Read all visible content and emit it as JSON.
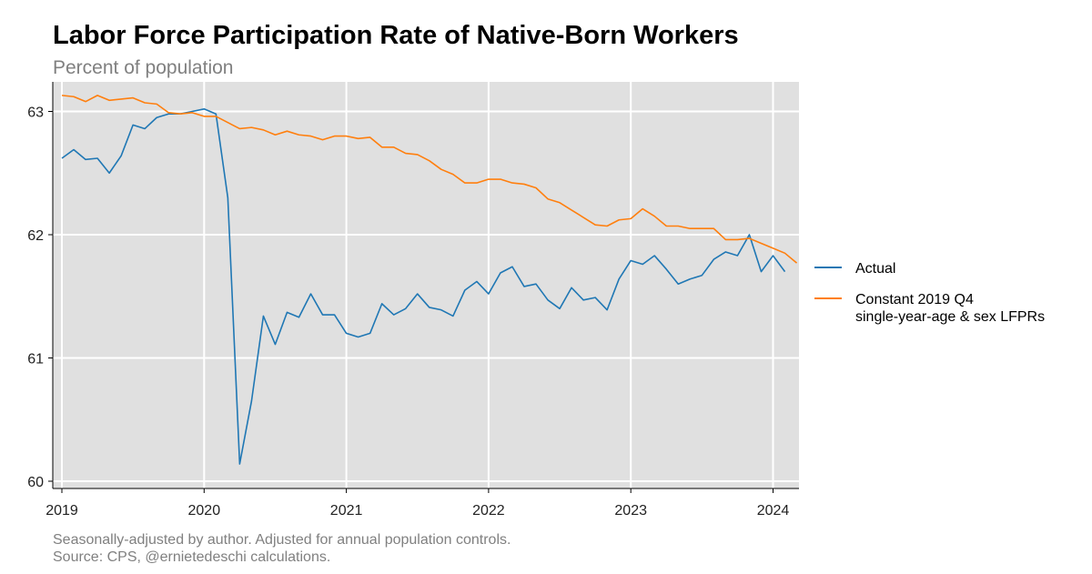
{
  "chart_data": {
    "type": "line",
    "title": "Labor Force Participation Rate of Native-Born Workers",
    "subtitle": "Percent of population",
    "xlabel": "",
    "ylabel": "",
    "xlim": [
      2019,
      2024.083
    ],
    "ylim": [
      60,
      63.22
    ],
    "x_ticks": [
      2019,
      2020,
      2021,
      2022,
      2023,
      2024
    ],
    "x_tick_labels": [
      "2019",
      "2020",
      "2021",
      "2022",
      "2023",
      "2024"
    ],
    "y_ticks": [
      60,
      61,
      62,
      63
    ],
    "y_tick_labels": [
      "60",
      "61",
      "62",
      "63"
    ],
    "grid": true,
    "legend_position": "right",
    "x_start": 2019,
    "x_step_months": 1,
    "series": [
      {
        "name": "Actual",
        "color": "#1f77b4",
        "values": [
          62.62,
          62.69,
          62.61,
          62.62,
          62.5,
          62.64,
          62.89,
          62.86,
          62.95,
          62.98,
          62.98,
          63.0,
          63.02,
          62.98,
          62.3,
          60.14,
          60.65,
          61.34,
          61.11,
          61.37,
          61.33,
          61.52,
          61.35,
          61.35,
          61.2,
          61.17,
          61.2,
          61.44,
          61.35,
          61.4,
          61.52,
          61.41,
          61.39,
          61.34,
          61.55,
          61.62,
          61.52,
          61.69,
          61.74,
          61.58,
          61.6,
          61.47,
          61.4,
          61.57,
          61.47,
          61.49,
          61.39,
          61.64,
          61.79,
          61.76,
          61.83,
          61.72,
          61.6,
          61.64,
          61.67,
          61.8,
          61.86,
          61.83,
          62.0,
          61.7,
          61.83,
          61.7
        ]
      },
      {
        "name": "Constant 2019 Q4\nsingle-year-age & sex LFPRs",
        "color": "#ff7f0e",
        "values": [
          63.13,
          63.12,
          63.08,
          63.13,
          63.09,
          63.1,
          63.11,
          63.07,
          63.06,
          62.99,
          62.98,
          62.99,
          62.96,
          62.96,
          62.91,
          62.86,
          62.87,
          62.85,
          62.81,
          62.84,
          62.81,
          62.8,
          62.77,
          62.8,
          62.8,
          62.78,
          62.79,
          62.71,
          62.71,
          62.66,
          62.65,
          62.6,
          62.53,
          62.49,
          62.42,
          62.42,
          62.45,
          62.45,
          62.42,
          62.41,
          62.38,
          62.29,
          62.26,
          62.2,
          62.14,
          62.08,
          62.07,
          62.12,
          62.13,
          62.21,
          62.15,
          62.07,
          62.07,
          62.05,
          62.05,
          62.05,
          61.96,
          61.96,
          61.97,
          61.93,
          61.89,
          61.85,
          61.77
        ]
      }
    ],
    "captions": [
      "Seasonally-adjusted by author. Adjusted for annual population controls.",
      "Source: CPS, @ernietedeschi calculations."
    ]
  },
  "colors": {
    "panel_background": "#e0e0e0",
    "gridline": "#ffffff",
    "axis": "#000000"
  }
}
